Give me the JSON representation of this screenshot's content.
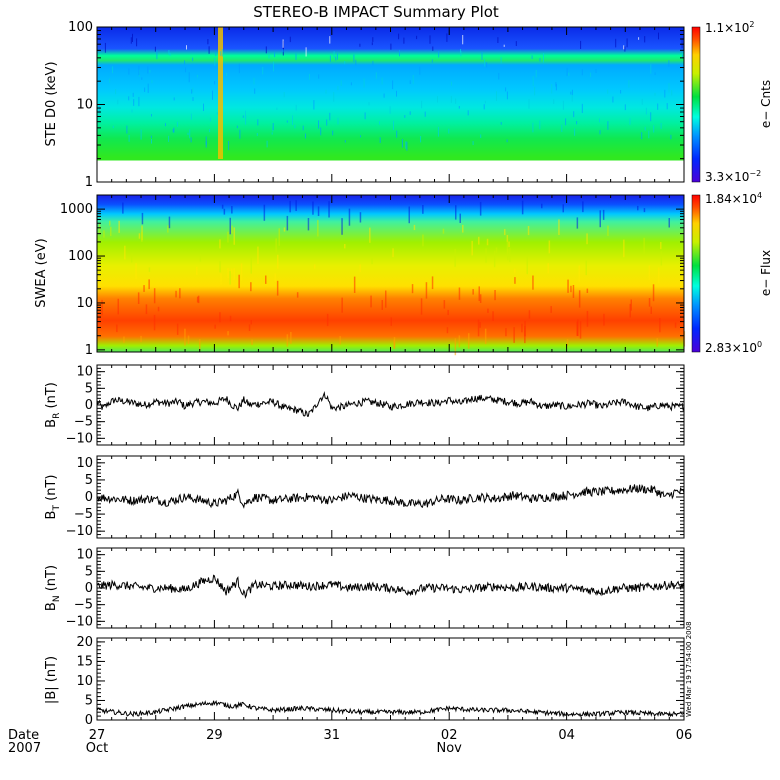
{
  "title": "STEREO-B IMPACT Summary Plot",
  "stamp": "Wed Mar 19 17:54:00 2008",
  "date_label": {
    "line1": "Date",
    "line2": "2007"
  },
  "chart_data": [
    {
      "type": "heatmap",
      "ylabel": "STE D0 (keV)",
      "yscale": "log",
      "ylim": [
        1,
        100
      ],
      "yticks": [
        {
          "value": 100,
          "label": "100"
        },
        {
          "value": 10,
          "label": "10"
        },
        {
          "value": 1,
          "label": "1"
        }
      ],
      "colorbar": {
        "label": "e− Cnts",
        "max_label": "1.1×10",
        "max_exp": "2",
        "min_label": "3.3×10",
        "min_exp": "−2"
      }
    },
    {
      "type": "heatmap",
      "ylabel": "SWEA (eV)",
      "yscale": "log",
      "ylim": [
        0.9,
        2000
      ],
      "yticks": [
        {
          "value": 1000,
          "label": "1000"
        },
        {
          "value": 100,
          "label": "100"
        },
        {
          "value": 10,
          "label": "10"
        },
        {
          "value": 1,
          "label": "1"
        }
      ],
      "colorbar": {
        "label": "e− Flux",
        "max_label": "1.84×10",
        "max_exp": "4",
        "min_label": "2.83×10",
        "min_exp": "0"
      }
    },
    {
      "type": "line",
      "ylabel_main": "B",
      "ylabel_sub": "R",
      "ylabel_unit": " (nT)",
      "ylim": [
        -12,
        12
      ],
      "yticks": [
        {
          "value": 10,
          "label": "10"
        },
        {
          "value": 5,
          "label": "5"
        },
        {
          "value": 0,
          "label": "0"
        },
        {
          "value": -5,
          "label": "−5"
        },
        {
          "value": -10,
          "label": "−10"
        }
      ],
      "series_points": [
        [
          0,
          1
        ],
        [
          0.1,
          -1
        ],
        [
          0.2,
          0.5
        ],
        [
          0.3,
          1.5
        ],
        [
          0.5,
          1
        ],
        [
          0.8,
          0
        ],
        [
          1,
          1
        ],
        [
          1.2,
          0.5
        ],
        [
          1.4,
          1
        ],
        [
          1.5,
          -0.5
        ],
        [
          1.6,
          0.5
        ],
        [
          1.8,
          1
        ],
        [
          2.0,
          0.5
        ],
        [
          2.2,
          2
        ],
        [
          2.3,
          0
        ],
        [
          2.4,
          -1
        ],
        [
          2.5,
          1.5
        ],
        [
          2.6,
          0
        ],
        [
          2.8,
          0.5
        ],
        [
          3.0,
          1
        ],
        [
          3.2,
          -1
        ],
        [
          3.4,
          -1.5
        ],
        [
          3.6,
          -3
        ],
        [
          3.7,
          -1
        ],
        [
          3.8,
          2
        ],
        [
          3.9,
          3
        ],
        [
          4.0,
          -1
        ],
        [
          4.2,
          -0.5
        ],
        [
          4.4,
          0.5
        ],
        [
          4.6,
          1
        ],
        [
          4.8,
          0.5
        ],
        [
          5.0,
          -0.5
        ],
        [
          5.2,
          0
        ],
        [
          5.5,
          1
        ],
        [
          5.8,
          0.5
        ],
        [
          6.0,
          1.5
        ],
        [
          6.2,
          0.5
        ],
        [
          6.4,
          2
        ],
        [
          6.6,
          2
        ],
        [
          6.8,
          1.5
        ],
        [
          7.0,
          1
        ],
        [
          7.2,
          0.5
        ],
        [
          7.4,
          1
        ],
        [
          7.6,
          -0.5
        ],
        [
          7.8,
          0
        ],
        [
          8.0,
          -0.5
        ],
        [
          8.2,
          0
        ],
        [
          8.4,
          0.5
        ],
        [
          8.6,
          -0.5
        ],
        [
          8.8,
          0.5
        ],
        [
          9.0,
          1
        ],
        [
          9.2,
          -0.5
        ],
        [
          9.4,
          -1
        ],
        [
          9.6,
          0
        ],
        [
          9.8,
          -0.5
        ],
        [
          10,
          -0.5
        ]
      ],
      "noise_amp": 1.1
    },
    {
      "type": "line",
      "ylabel_main": "B",
      "ylabel_sub": "T",
      "ylabel_unit": " (nT)",
      "ylim": [
        -12,
        12
      ],
      "yticks": [
        {
          "value": 10,
          "label": "10"
        },
        {
          "value": 5,
          "label": "5"
        },
        {
          "value": 0,
          "label": "0"
        },
        {
          "value": -5,
          "label": "−5"
        },
        {
          "value": -10,
          "label": "−10"
        }
      ],
      "series_points": [
        [
          0,
          0
        ],
        [
          0.3,
          -0.5
        ],
        [
          0.6,
          -1
        ],
        [
          0.9,
          -0.5
        ],
        [
          1.2,
          -1.5
        ],
        [
          1.5,
          0
        ],
        [
          1.8,
          -1
        ],
        [
          2.0,
          -2
        ],
        [
          2.2,
          -1
        ],
        [
          2.4,
          1
        ],
        [
          2.5,
          -2
        ],
        [
          2.7,
          0
        ],
        [
          3.0,
          -1
        ],
        [
          3.3,
          -0.5
        ],
        [
          3.6,
          0
        ],
        [
          4.0,
          -1
        ],
        [
          4.3,
          0.5
        ],
        [
          4.6,
          -0.5
        ],
        [
          5.0,
          -1
        ],
        [
          5.3,
          -2
        ],
        [
          5.6,
          -2
        ],
        [
          5.9,
          -0.5
        ],
        [
          6.2,
          -1
        ],
        [
          6.5,
          0
        ],
        [
          6.8,
          -0.5
        ],
        [
          7.1,
          0.5
        ],
        [
          7.4,
          -0.5
        ],
        [
          7.7,
          0
        ],
        [
          8.0,
          0.5
        ],
        [
          8.3,
          1.5
        ],
        [
          8.6,
          1.5
        ],
        [
          8.9,
          2
        ],
        [
          9.2,
          2.5
        ],
        [
          9.5,
          2
        ],
        [
          9.7,
          0
        ],
        [
          9.85,
          1.5
        ],
        [
          10,
          1.5
        ]
      ],
      "noise_amp": 1.3
    },
    {
      "type": "line",
      "ylabel_main": "B",
      "ylabel_sub": "N",
      "ylabel_unit": " (nT)",
      "ylim": [
        -12,
        12
      ],
      "yticks": [
        {
          "value": 10,
          "label": "10"
        },
        {
          "value": 5,
          "label": "5"
        },
        {
          "value": 0,
          "label": "0"
        },
        {
          "value": -5,
          "label": "−5"
        },
        {
          "value": -10,
          "label": "−10"
        }
      ],
      "series_points": [
        [
          0,
          0.5
        ],
        [
          0.3,
          1
        ],
        [
          0.6,
          0.5
        ],
        [
          0.9,
          0
        ],
        [
          1.2,
          0
        ],
        [
          1.5,
          -0.5
        ],
        [
          1.8,
          2
        ],
        [
          2.0,
          3
        ],
        [
          2.2,
          -1
        ],
        [
          2.4,
          2
        ],
        [
          2.5,
          -2
        ],
        [
          2.7,
          1
        ],
        [
          3.0,
          0.5
        ],
        [
          3.3,
          1
        ],
        [
          3.6,
          0.5
        ],
        [
          4.0,
          1
        ],
        [
          4.3,
          0
        ],
        [
          4.6,
          0.5
        ],
        [
          5.0,
          0
        ],
        [
          5.3,
          -1
        ],
        [
          5.6,
          0
        ],
        [
          5.9,
          0
        ],
        [
          6.2,
          -0.5
        ],
        [
          6.5,
          0
        ],
        [
          6.8,
          0.5
        ],
        [
          7.1,
          0
        ],
        [
          7.4,
          0.5
        ],
        [
          7.7,
          0
        ],
        [
          8.0,
          0
        ],
        [
          8.3,
          -0.5
        ],
        [
          8.6,
          -1
        ],
        [
          8.9,
          0
        ],
        [
          9.2,
          0
        ],
        [
          9.5,
          0.5
        ],
        [
          9.8,
          1
        ],
        [
          10,
          0.5
        ]
      ],
      "noise_amp": 1.3
    },
    {
      "type": "line",
      "ylabel_main": "|B| (nT)",
      "ylim": [
        0,
        21
      ],
      "yticks": [
        {
          "value": 20,
          "label": "20"
        },
        {
          "value": 15,
          "label": "15"
        },
        {
          "value": 10,
          "label": "10"
        },
        {
          "value": 5,
          "label": "5"
        },
        {
          "value": 0,
          "label": "0"
        }
      ],
      "series_points": [
        [
          0,
          2.5
        ],
        [
          0.3,
          2
        ],
        [
          0.6,
          1.5
        ],
        [
          1.0,
          2
        ],
        [
          1.5,
          3.5
        ],
        [
          2.0,
          4.5
        ],
        [
          2.3,
          3.5
        ],
        [
          2.5,
          4
        ],
        [
          2.7,
          3
        ],
        [
          3.0,
          2.5
        ],
        [
          3.5,
          3
        ],
        [
          4.0,
          2.5
        ],
        [
          4.5,
          2
        ],
        [
          5.0,
          2
        ],
        [
          5.5,
          2
        ],
        [
          6.0,
          3
        ],
        [
          6.5,
          2.5
        ],
        [
          7.0,
          2.5
        ],
        [
          7.5,
          2
        ],
        [
          8.0,
          1.5
        ],
        [
          8.5,
          1.5
        ],
        [
          9.0,
          2
        ],
        [
          9.5,
          1.5
        ],
        [
          10,
          1.5
        ]
      ],
      "noise_amp": 0.6
    }
  ],
  "x_axis": {
    "range_days": [
      0,
      10
    ],
    "major_ticks": [
      {
        "day": 0,
        "label": "27",
        "sub": "Oct"
      },
      {
        "day": 2,
        "label": "29",
        "sub": ""
      },
      {
        "day": 4,
        "label": "31",
        "sub": ""
      },
      {
        "day": 6,
        "label": "02",
        "sub": "Nov"
      },
      {
        "day": 8,
        "label": "04",
        "sub": ""
      },
      {
        "day": 10,
        "label": "06",
        "sub": ""
      }
    ]
  }
}
